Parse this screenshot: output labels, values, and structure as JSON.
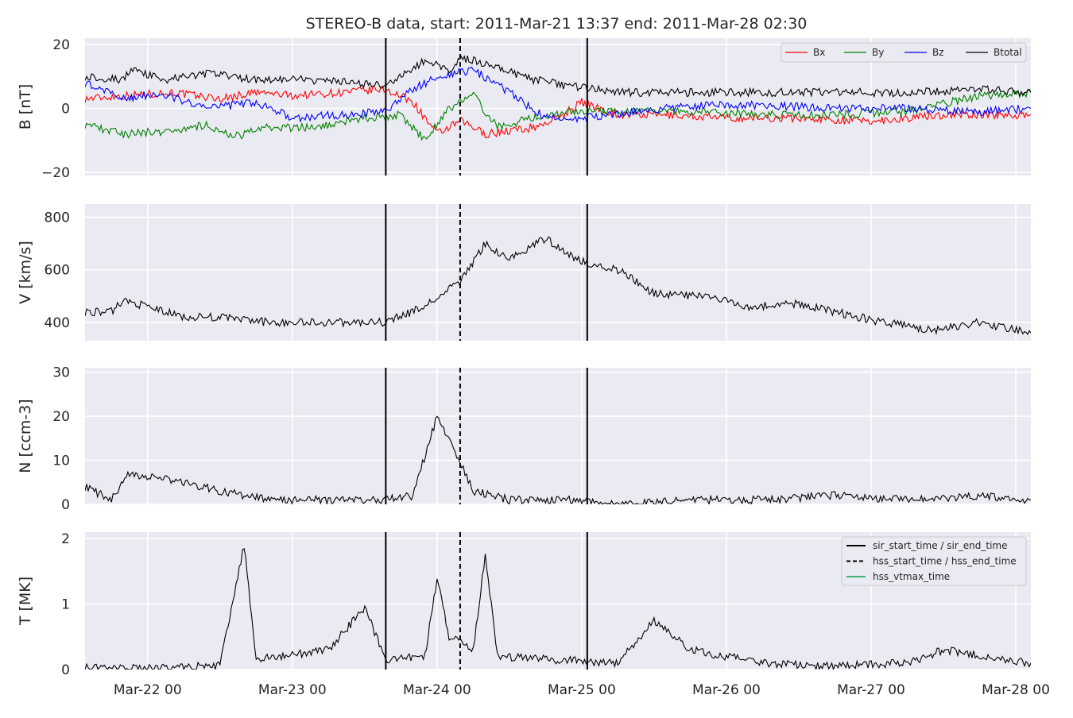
{
  "figure": {
    "title": "STEREO-B data, start: 2011-Mar-21 13:37  end: 2011-Mar-28 02:30",
    "x_start": "2011-03-21T13:37",
    "x_end": "2011-03-28T02:30",
    "x_ticks": [
      {
        "label": "Mar-22 00",
        "t": "2011-03-22T00:00"
      },
      {
        "label": "Mar-23 00",
        "t": "2011-03-23T00:00"
      },
      {
        "label": "Mar-24 00",
        "t": "2011-03-24T00:00"
      },
      {
        "label": "Mar-25 00",
        "t": "2011-03-25T00:00"
      },
      {
        "label": "Mar-26 00",
        "t": "2011-03-26T00:00"
      },
      {
        "label": "Mar-27 00",
        "t": "2011-03-27T00:00"
      },
      {
        "label": "Mar-28 00",
        "t": "2011-03-28T00:00"
      }
    ],
    "event_lines": {
      "sir_start_time": "2011-03-23T15:30",
      "sir_end_time": "2011-03-25T00:55",
      "hss_start_time": "2011-03-24T03:50"
    },
    "legend_events": [
      {
        "label": "sir_start_time / sir_end_time",
        "style": "solid",
        "color": "#000000"
      },
      {
        "label": "hss_start_time / hss_end_time",
        "style": "dashed",
        "color": "#000000"
      },
      {
        "label": "hss_vtmax_time",
        "style": "solid",
        "color": "#3cb371"
      }
    ]
  },
  "chart_data": [
    {
      "type": "line",
      "ylabel": "B [nT]",
      "ylim": [
        -21,
        22
      ],
      "yticks": [
        {
          "v": -20,
          "label": "−20"
        },
        {
          "v": 0,
          "label": "0"
        },
        {
          "v": 20,
          "label": "20"
        }
      ],
      "legend": "top-right",
      "series": [
        {
          "name": "Bx",
          "color": "#ff0000",
          "points": [
            [
              "2011-03-21T13:37",
              3
            ],
            [
              "2011-03-21T20:00",
              4
            ],
            [
              "2011-03-22T04:00",
              5
            ],
            [
              "2011-03-22T12:00",
              3
            ],
            [
              "2011-03-22T18:00",
              5
            ],
            [
              "2011-03-23T00:00",
              4
            ],
            [
              "2011-03-23T08:00",
              5
            ],
            [
              "2011-03-23T15:30",
              6
            ],
            [
              "2011-03-23T20:00",
              2
            ],
            [
              "2011-03-24T00:00",
              -8
            ],
            [
              "2011-03-24T04:00",
              -4
            ],
            [
              "2011-03-24T08:00",
              -8
            ],
            [
              "2011-03-24T16:00",
              -6
            ],
            [
              "2011-03-24T20:00",
              -3
            ],
            [
              "2011-03-25T00:00",
              2
            ],
            [
              "2011-03-25T06:00",
              -2
            ],
            [
              "2011-03-25T14:00",
              -2
            ],
            [
              "2011-03-26T00:00",
              -3
            ],
            [
              "2011-03-26T12:00",
              -3
            ],
            [
              "2011-03-27T00:00",
              -4
            ],
            [
              "2011-03-27T12:00",
              -2
            ],
            [
              "2011-03-28T02:30",
              -2
            ]
          ]
        },
        {
          "name": "By",
          "color": "#008000",
          "points": [
            [
              "2011-03-21T13:37",
              -5
            ],
            [
              "2011-03-21T20:00",
              -8
            ],
            [
              "2011-03-22T04:00",
              -7
            ],
            [
              "2011-03-22T10:00",
              -5
            ],
            [
              "2011-03-22T14:00",
              -9
            ],
            [
              "2011-03-22T20:00",
              -6
            ],
            [
              "2011-03-23T04:00",
              -6
            ],
            [
              "2011-03-23T12:00",
              -3
            ],
            [
              "2011-03-23T18:00",
              -2
            ],
            [
              "2011-03-23T22:00",
              -10
            ],
            [
              "2011-03-24T02:00",
              0
            ],
            [
              "2011-03-24T06:00",
              4
            ],
            [
              "2011-03-24T10:00",
              -6
            ],
            [
              "2011-03-24T16:00",
              -3
            ],
            [
              "2011-03-24T22:00",
              -1
            ],
            [
              "2011-03-25T06:00",
              -1
            ],
            [
              "2011-03-25T18:00",
              -1
            ],
            [
              "2011-03-26T06:00",
              -2
            ],
            [
              "2011-03-26T18:00",
              -2
            ],
            [
              "2011-03-27T06:00",
              -1
            ],
            [
              "2011-03-27T18:00",
              4
            ],
            [
              "2011-03-28T02:30",
              5
            ]
          ]
        },
        {
          "name": "Bz",
          "color": "#0000ff",
          "points": [
            [
              "2011-03-21T13:37",
              8
            ],
            [
              "2011-03-21T20:00",
              3
            ],
            [
              "2011-03-22T02:00",
              5
            ],
            [
              "2011-03-22T10:00",
              0
            ],
            [
              "2011-03-22T18:00",
              2
            ],
            [
              "2011-03-23T00:00",
              -3
            ],
            [
              "2011-03-23T08:00",
              -2
            ],
            [
              "2011-03-23T15:30",
              -1
            ],
            [
              "2011-03-23T20:00",
              6
            ],
            [
              "2011-03-24T00:00",
              10
            ],
            [
              "2011-03-24T06:00",
              12
            ],
            [
              "2011-03-24T12:00",
              5
            ],
            [
              "2011-03-24T18:00",
              -3
            ],
            [
              "2011-03-25T00:00",
              -3
            ],
            [
              "2011-03-25T08:00",
              -1
            ],
            [
              "2011-03-25T18:00",
              1
            ],
            [
              "2011-03-26T06:00",
              1
            ],
            [
              "2011-03-26T18:00",
              0
            ],
            [
              "2011-03-27T06:00",
              0
            ],
            [
              "2011-03-27T18:00",
              -1
            ],
            [
              "2011-03-28T02:30",
              0
            ]
          ]
        },
        {
          "name": "Btotal",
          "color": "#000000",
          "points": [
            [
              "2011-03-21T13:37",
              10
            ],
            [
              "2011-03-21T20:00",
              9
            ],
            [
              "2011-03-21T21:00",
              12
            ],
            [
              "2011-03-22T03:00",
              9
            ],
            [
              "2011-03-22T10:00",
              11
            ],
            [
              "2011-03-22T18:00",
              9
            ],
            [
              "2011-03-23T02:00",
              9
            ],
            [
              "2011-03-23T10:00",
              8
            ],
            [
              "2011-03-23T15:30",
              7
            ],
            [
              "2011-03-23T22:00",
              15
            ],
            [
              "2011-03-24T02:00",
              12
            ],
            [
              "2011-03-24T04:00",
              16
            ],
            [
              "2011-03-24T10:00",
              13
            ],
            [
              "2011-03-24T16:00",
              9
            ],
            [
              "2011-03-24T22:00",
              7
            ],
            [
              "2011-03-25T06:00",
              5
            ],
            [
              "2011-03-25T18:00",
              5
            ],
            [
              "2011-03-26T06:00",
              5
            ],
            [
              "2011-03-26T18:00",
              5
            ],
            [
              "2011-03-27T06:00",
              5
            ],
            [
              "2011-03-27T18:00",
              6
            ],
            [
              "2011-03-28T02:30",
              5
            ]
          ]
        }
      ]
    },
    {
      "type": "line",
      "ylabel": "V [km/s]",
      "ylim": [
        330,
        850
      ],
      "yticks": [
        {
          "v": 400,
          "label": "400"
        },
        {
          "v": 600,
          "label": "600"
        },
        {
          "v": 800,
          "label": "800"
        }
      ],
      "series": [
        {
          "color": "#000000",
          "points": [
            [
              "2011-03-21T13:37",
              440
            ],
            [
              "2011-03-21T18:00",
              440
            ],
            [
              "2011-03-21T20:00",
              485
            ],
            [
              "2011-03-22T06:00",
              420
            ],
            [
              "2011-03-22T12:00",
              420
            ],
            [
              "2011-03-22T20:00",
              400
            ],
            [
              "2011-03-23T04:00",
              400
            ],
            [
              "2011-03-23T10:00",
              400
            ],
            [
              "2011-03-23T15:30",
              400
            ],
            [
              "2011-03-23T22:00",
              460
            ],
            [
              "2011-03-24T04:00",
              560
            ],
            [
              "2011-03-24T08:00",
              700
            ],
            [
              "2011-03-24T12:00",
              640
            ],
            [
              "2011-03-24T18:00",
              720
            ],
            [
              "2011-03-25T00:00",
              630
            ],
            [
              "2011-03-25T06:00",
              600
            ],
            [
              "2011-03-25T12:00",
              510
            ],
            [
              "2011-03-25T20:00",
              500
            ],
            [
              "2011-03-26T04:00",
              460
            ],
            [
              "2011-03-26T12:00",
              470
            ],
            [
              "2011-03-26T20:00",
              430
            ],
            [
              "2011-03-27T02:00",
              400
            ],
            [
              "2011-03-27T10:00",
              370
            ],
            [
              "2011-03-27T18:00",
              400
            ],
            [
              "2011-03-28T02:30",
              360
            ]
          ]
        }
      ]
    },
    {
      "type": "line",
      "ylabel": "N [ccm-3]",
      "ylim": [
        0,
        31
      ],
      "yticks": [
        {
          "v": 0,
          "label": "0"
        },
        {
          "v": 10,
          "label": "10"
        },
        {
          "v": 20,
          "label": "20"
        },
        {
          "v": 30,
          "label": "30"
        }
      ],
      "series": [
        {
          "color": "#000000",
          "points": [
            [
              "2011-03-21T13:37",
              4
            ],
            [
              "2011-03-21T18:00",
              1
            ],
            [
              "2011-03-21T21:00",
              7
            ],
            [
              "2011-03-22T06:00",
              5
            ],
            [
              "2011-03-22T12:00",
              3
            ],
            [
              "2011-03-22T20:00",
              1
            ],
            [
              "2011-03-23T06:00",
              1
            ],
            [
              "2011-03-23T15:30",
              1
            ],
            [
              "2011-03-23T20:00",
              2
            ],
            [
              "2011-03-24T00:00",
              20
            ],
            [
              "2011-03-24T03:00",
              12
            ],
            [
              "2011-03-24T06:00",
              3
            ],
            [
              "2011-03-24T12:00",
              1
            ],
            [
              "2011-03-24T18:00",
              1
            ],
            [
              "2011-03-25T00:00",
              1
            ],
            [
              "2011-03-25T06:00",
              0
            ],
            [
              "2011-03-25T18:00",
              1
            ],
            [
              "2011-03-26T06:00",
              1
            ],
            [
              "2011-03-26T18:00",
              2
            ],
            [
              "2011-03-27T06:00",
              1
            ],
            [
              "2011-03-27T18:00",
              2
            ],
            [
              "2011-03-28T02:30",
              1
            ]
          ]
        }
      ]
    },
    {
      "type": "line",
      "ylabel": "T [MK]",
      "ylim": [
        0,
        2.1
      ],
      "yticks": [
        {
          "v": 0,
          "label": "0"
        },
        {
          "v": 1,
          "label": "1"
        },
        {
          "v": 2,
          "label": "2"
        }
      ],
      "legend": "top-right",
      "series": [
        {
          "color": "#000000",
          "points": [
            [
              "2011-03-21T13:37",
              0.02
            ],
            [
              "2011-03-22T00:00",
              0.02
            ],
            [
              "2011-03-22T12:00",
              0.06
            ],
            [
              "2011-03-22T16:00",
              1.9
            ],
            [
              "2011-03-22T18:00",
              0.15
            ],
            [
              "2011-03-23T06:00",
              0.3
            ],
            [
              "2011-03-23T12:00",
              0.95
            ],
            [
              "2011-03-23T15:30",
              0.15
            ],
            [
              "2011-03-23T22:00",
              0.2
            ],
            [
              "2011-03-24T00:00",
              1.4
            ],
            [
              "2011-03-24T02:00",
              0.5
            ],
            [
              "2011-03-24T06:00",
              0.3
            ],
            [
              "2011-03-24T08:00",
              1.75
            ],
            [
              "2011-03-24T10:00",
              0.2
            ],
            [
              "2011-03-24T20:00",
              0.15
            ],
            [
              "2011-03-25T06:00",
              0.1
            ],
            [
              "2011-03-25T12:00",
              0.75
            ],
            [
              "2011-03-25T18:00",
              0.3
            ],
            [
              "2011-03-26T06:00",
              0.1
            ],
            [
              "2011-03-26T18:00",
              0.05
            ],
            [
              "2011-03-27T06:00",
              0.1
            ],
            [
              "2011-03-27T12:00",
              0.3
            ],
            [
              "2011-03-28T02:30",
              0.1
            ]
          ]
        }
      ]
    }
  ]
}
